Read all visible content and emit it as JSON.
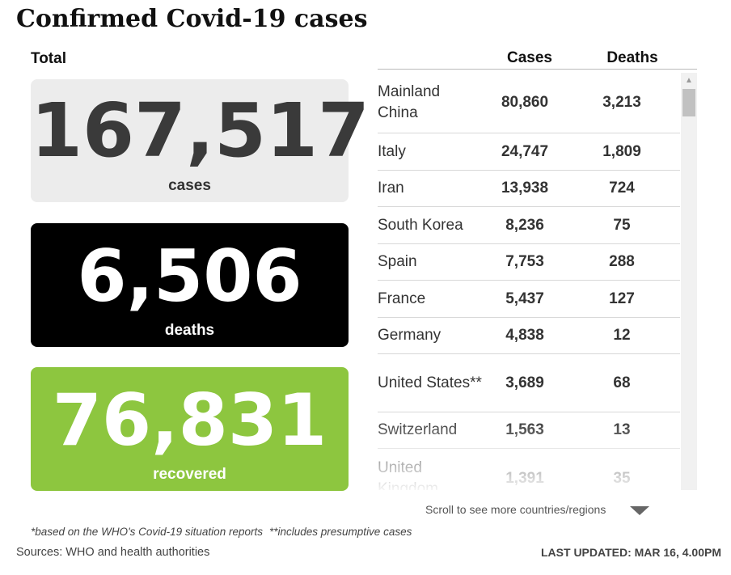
{
  "title": "Confirmed Covid-19 cases",
  "total_label": "Total",
  "stats": {
    "cases": {
      "value": "167,517",
      "label": "cases"
    },
    "deaths": {
      "value": "6,506",
      "label": "deaths"
    },
    "recovered": {
      "value": "76,831",
      "label": "recovered"
    }
  },
  "table": {
    "headers": {
      "cases": "Cases",
      "deaths": "Deaths"
    },
    "rows": [
      {
        "country": "Mainland China",
        "cases": "80,860",
        "deaths": "3,213"
      },
      {
        "country": "Italy",
        "cases": "24,747",
        "deaths": "1,809"
      },
      {
        "country": "Iran",
        "cases": "13,938",
        "deaths": "724"
      },
      {
        "country": "South Korea",
        "cases": "8,236",
        "deaths": "75"
      },
      {
        "country": "Spain",
        "cases": "7,753",
        "deaths": "288"
      },
      {
        "country": "France",
        "cases": "5,437",
        "deaths": "127"
      },
      {
        "country": "Germany",
        "cases": "4,838",
        "deaths": "12"
      },
      {
        "country": "United States**",
        "cases": "3,689",
        "deaths": "68"
      },
      {
        "country": "Switzerland",
        "cases": "1,563",
        "deaths": "13"
      },
      {
        "country": "United Kingdom",
        "cases": "1,391",
        "deaths": "35"
      }
    ]
  },
  "scroll_hint": "Scroll to see more countries/regions",
  "footnotes": {
    "who": "*based on the WHO's Covid-19 situation reports",
    "presumptive": "**includes presumptive cases"
  },
  "sources": "Sources: WHO and health authorities",
  "last_updated": "LAST UPDATED: MAR 16, 4.00PM",
  "colors": {
    "recovered": "#8dc63f",
    "deaths": "#000000",
    "cases": "#ececec"
  },
  "icons": {
    "scroll_down": "triangle-down-icon",
    "scroll_up": "chevron-up-icon"
  }
}
